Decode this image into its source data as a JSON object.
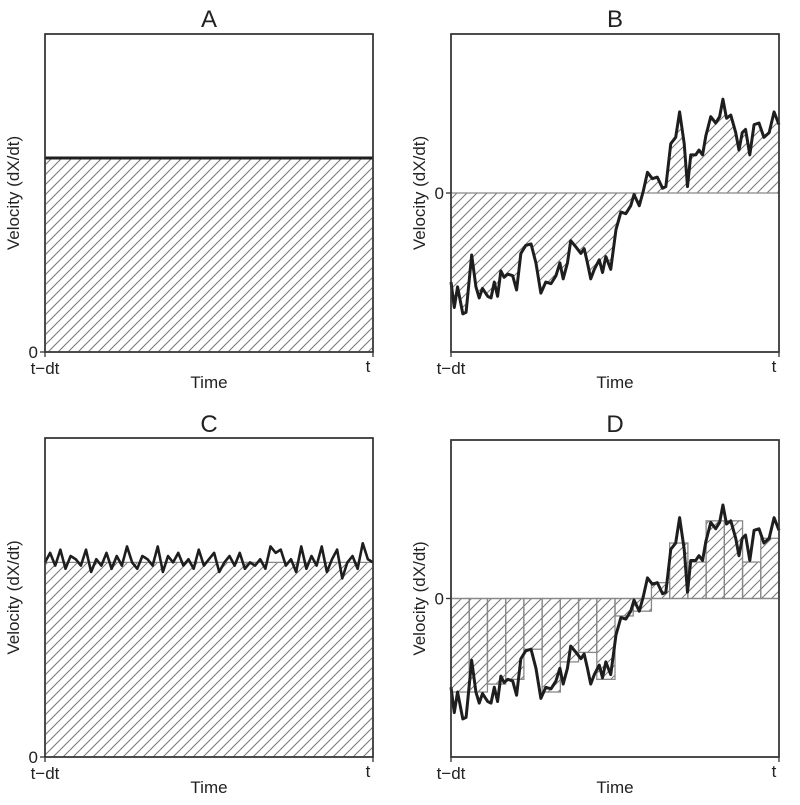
{
  "chart_data": [
    {
      "type": "area",
      "title": "A",
      "xlabel": "Time",
      "ylabel": "Velocity (dX/dt)",
      "x_tick_labels": [
        "t−dt",
        "t"
      ],
      "y_tick_labels": [
        "0"
      ],
      "ylim": [
        0,
        1
      ],
      "constant_value": 0.61
    },
    {
      "type": "line",
      "title": "B",
      "xlabel": "Time",
      "ylabel": "Velocity (dX/dt)",
      "x_tick_labels": [
        "t−dt",
        "t"
      ],
      "y_tick_labels": [
        "0"
      ],
      "ylim": [
        -1,
        1
      ],
      "x": [
        0,
        0.01,
        0.02,
        0.036,
        0.046,
        0.063,
        0.076,
        0.086,
        0.096,
        0.112,
        0.122,
        0.132,
        0.142,
        0.152,
        0.162,
        0.173,
        0.188,
        0.2,
        0.213,
        0.228,
        0.244,
        0.259,
        0.274,
        0.289,
        0.305,
        0.32,
        0.332,
        0.342,
        0.355,
        0.365,
        0.381,
        0.396,
        0.406,
        0.416,
        0.426,
        0.437,
        0.452,
        0.462,
        0.472,
        0.487,
        0.503,
        0.518,
        0.533,
        0.548,
        0.558,
        0.574,
        0.586,
        0.599,
        0.614,
        0.629,
        0.645,
        0.655,
        0.67,
        0.685,
        0.697,
        0.711,
        0.721,
        0.731,
        0.746,
        0.756,
        0.767,
        0.777,
        0.792,
        0.807,
        0.819,
        0.829,
        0.84,
        0.853,
        0.868,
        0.878,
        0.888,
        0.898,
        0.911,
        0.924,
        0.939,
        0.954,
        0.97,
        0.985,
        1
      ],
      "y": [
        -0.56,
        -0.72,
        -0.59,
        -0.76,
        -0.75,
        -0.39,
        -0.59,
        -0.66,
        -0.6,
        -0.65,
        -0.66,
        -0.56,
        -0.65,
        -0.49,
        -0.53,
        -0.51,
        -0.52,
        -0.61,
        -0.38,
        -0.33,
        -0.32,
        -0.44,
        -0.63,
        -0.56,
        -0.57,
        -0.52,
        -0.44,
        -0.54,
        -0.44,
        -0.3,
        -0.34,
        -0.38,
        -0.35,
        -0.44,
        -0.54,
        -0.48,
        -0.42,
        -0.5,
        -0.4,
        -0.48,
        -0.23,
        -0.12,
        -0.13,
        -0.08,
        -0.01,
        -0.08,
        0.01,
        0.13,
        0.09,
        0.1,
        0.03,
        0.04,
        0.31,
        0.35,
        0.51,
        0.31,
        0.04,
        0.24,
        0.24,
        0.27,
        0.24,
        0.36,
        0.48,
        0.44,
        0.48,
        0.59,
        0.47,
        0.49,
        0.38,
        0.27,
        0.38,
        0.4,
        0.24,
        0.43,
        0.44,
        0.35,
        0.38,
        0.51,
        0.43
      ]
    },
    {
      "type": "line",
      "title": "C",
      "xlabel": "Time",
      "ylabel": "Velocity (dX/dt)",
      "x_tick_labels": [
        "t−dt",
        "t"
      ],
      "y_tick_labels": [
        "0"
      ],
      "ylim": [
        0,
        1
      ],
      "mean_value": 0.61,
      "y": [
        0.61,
        0.64,
        0.6,
        0.65,
        0.59,
        0.63,
        0.62,
        0.6,
        0.65,
        0.58,
        0.62,
        0.6,
        0.64,
        0.59,
        0.63,
        0.6,
        0.66,
        0.61,
        0.59,
        0.63,
        0.62,
        0.6,
        0.66,
        0.58,
        0.63,
        0.61,
        0.64,
        0.6,
        0.62,
        0.59,
        0.65,
        0.6,
        0.62,
        0.64,
        0.58,
        0.61,
        0.63,
        0.6,
        0.64,
        0.59,
        0.61,
        0.6,
        0.62,
        0.59,
        0.66,
        0.64,
        0.65,
        0.6,
        0.62,
        0.58,
        0.66,
        0.59,
        0.63,
        0.6,
        0.66,
        0.58,
        0.62,
        0.65,
        0.56,
        0.61,
        0.63,
        0.59,
        0.67,
        0.62,
        0.61
      ]
    },
    {
      "type": "bar",
      "title": "D",
      "xlabel": "Time",
      "ylabel": "Velocity (dX/dt)",
      "x_tick_labels": [
        "t−dt",
        "t"
      ],
      "y_tick_labels": [
        "0"
      ],
      "ylim": [
        -1,
        1
      ],
      "line_same_as": "B",
      "bin_values": [
        -0.59,
        -0.59,
        -0.54,
        -0.51,
        -0.32,
        -0.59,
        -0.4,
        -0.34,
        -0.51,
        -0.11,
        -0.08,
        0.1,
        0.35,
        0.23,
        0.49,
        0.49,
        0.23,
        0.38
      ]
    }
  ],
  "colors": {
    "line": "#1e1e1e",
    "hatch": "#7a7a7a",
    "frame": "#333333"
  }
}
